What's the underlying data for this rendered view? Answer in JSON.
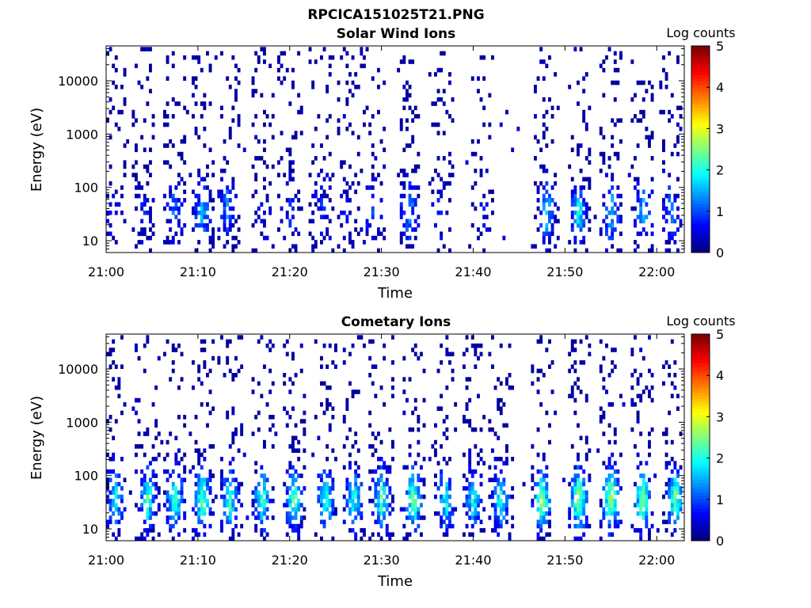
{
  "figure_title": "RPCICA151025T21.PNG",
  "chart_data": [
    {
      "type": "heatmap",
      "title": "Solar Wind Ions",
      "xlabel": "Time",
      "ylabel": "Energy (eV)",
      "yscale": "log",
      "ylim": [
        6,
        45000
      ],
      "xlim": [
        "21:00",
        "22:03"
      ],
      "x_ticks": [
        "21:00",
        "21:10",
        "21:20",
        "21:30",
        "21:40",
        "21:50",
        "22:00"
      ],
      "y_ticks": [
        "10",
        "100",
        "1000",
        "10000"
      ],
      "colorbar": {
        "label": "Log counts",
        "range": [
          0,
          5
        ],
        "ticks": [
          "0",
          "1",
          "2",
          "3",
          "4",
          "5"
        ],
        "colormap": "jet"
      },
      "activity_profile": [
        {
          "minute": 0.8,
          "intensity": 0.7
        },
        {
          "minute": 4.0,
          "intensity": 0.7
        },
        {
          "minute": 7.5,
          "intensity": 1.2
        },
        {
          "minute": 10.5,
          "intensity": 1.5
        },
        {
          "minute": 13.2,
          "intensity": 1.3
        },
        {
          "minute": 17.0,
          "intensity": 0.5
        },
        {
          "minute": 20.0,
          "intensity": 0.7
        },
        {
          "minute": 23.5,
          "intensity": 0.8
        },
        {
          "minute": 26.5,
          "intensity": 0.6
        },
        {
          "minute": 29.0,
          "intensity": 0.9
        },
        {
          "minute": 33.0,
          "intensity": 1.5
        },
        {
          "minute": 36.5,
          "intensity": 0.7
        },
        {
          "minute": 41.0,
          "intensity": 0.6
        },
        {
          "minute": 48.0,
          "intensity": 1.7
        },
        {
          "minute": 51.5,
          "intensity": 1.9
        },
        {
          "minute": 55.0,
          "intensity": 1.8
        },
        {
          "minute": 58.5,
          "intensity": 1.5
        },
        {
          "minute": 61.5,
          "intensity": 1.3
        }
      ]
    },
    {
      "type": "heatmap",
      "title": "Cometary Ions",
      "xlabel": "Time",
      "ylabel": "Energy (eV)",
      "yscale": "log",
      "ylim": [
        6,
        45000
      ],
      "xlim": [
        "21:00",
        "22:03"
      ],
      "x_ticks": [
        "21:00",
        "21:10",
        "21:20",
        "21:30",
        "21:40",
        "21:50",
        "22:00"
      ],
      "y_ticks": [
        "10",
        "100",
        "1000",
        "10000"
      ],
      "colorbar": {
        "label": "Log counts",
        "range": [
          0,
          5
        ],
        "ticks": [
          "0",
          "1",
          "2",
          "3",
          "4",
          "5"
        ],
        "colormap": "jet"
      },
      "activity_profile": [
        {
          "minute": 1.0,
          "intensity": 2.0
        },
        {
          "minute": 4.5,
          "intensity": 2.2
        },
        {
          "minute": 7.5,
          "intensity": 2.4
        },
        {
          "minute": 10.5,
          "intensity": 2.5
        },
        {
          "minute": 13.5,
          "intensity": 2.2
        },
        {
          "minute": 17.0,
          "intensity": 2.3
        },
        {
          "minute": 20.5,
          "intensity": 2.4
        },
        {
          "minute": 24.0,
          "intensity": 2.2
        },
        {
          "minute": 27.0,
          "intensity": 2.1
        },
        {
          "minute": 30.0,
          "intensity": 2.3
        },
        {
          "minute": 33.5,
          "intensity": 2.6
        },
        {
          "minute": 37.0,
          "intensity": 2.0
        },
        {
          "minute": 40.0,
          "intensity": 2.0
        },
        {
          "minute": 43.0,
          "intensity": 2.1
        },
        {
          "minute": 47.5,
          "intensity": 2.7
        },
        {
          "minute": 51.5,
          "intensity": 2.8
        },
        {
          "minute": 55.0,
          "intensity": 2.8
        },
        {
          "minute": 58.5,
          "intensity": 2.7
        },
        {
          "minute": 62.0,
          "intensity": 2.5
        }
      ]
    }
  ]
}
